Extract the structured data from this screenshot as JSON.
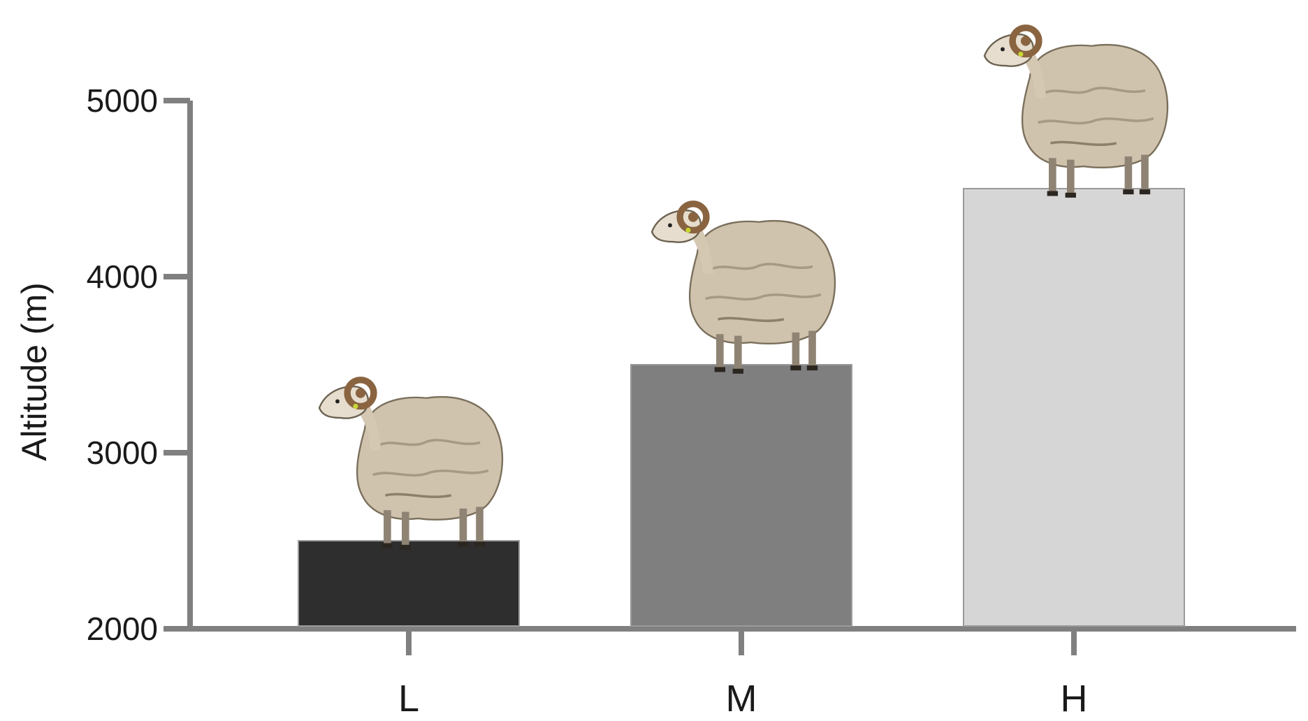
{
  "chart_data": {
    "type": "bar",
    "categories": [
      "L",
      "M",
      "H"
    ],
    "values": [
      2500,
      3500,
      4500
    ],
    "ylabel": "Altitude (m)",
    "xlabel": "",
    "ylim": [
      2000,
      5000
    ],
    "yticks": [
      2000,
      3000,
      4000,
      5000
    ],
    "grid": false,
    "bar_colors": [
      "#2e2e2e",
      "#7f7f7f",
      "#d6d6d6"
    ],
    "axis_color": "#808080",
    "decoration_icon": "sheep-icon"
  }
}
